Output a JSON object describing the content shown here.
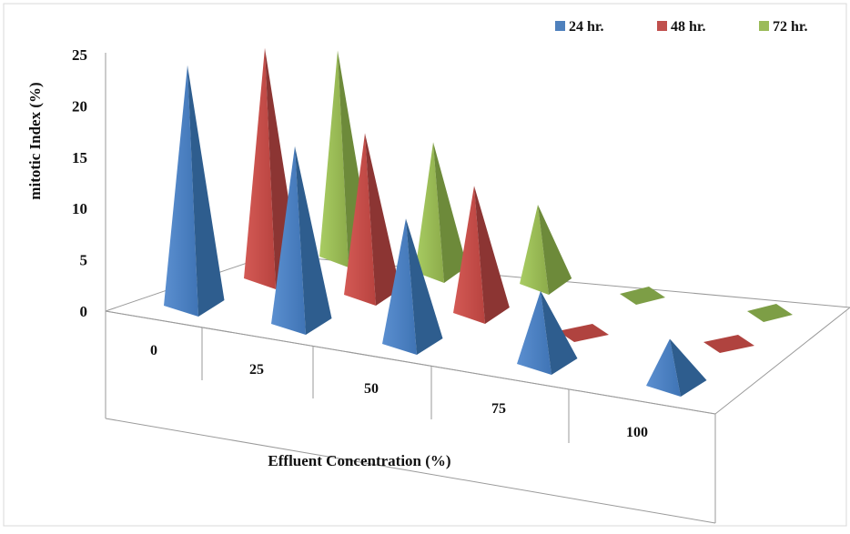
{
  "chart_data": {
    "type": "bar",
    "bar_shape": "3d-pyramid",
    "categories": [
      "0",
      "25",
      "50",
      "75",
      "100"
    ],
    "series": [
      {
        "name": "24 hr.",
        "color": "#4f81bd",
        "values": [
          23.5,
          17.5,
          12.5,
          7.5,
          5.0
        ]
      },
      {
        "name": "48 hr.",
        "color": "#c0504d",
        "values": [
          24.0,
          17.0,
          13.5,
          0.0,
          0.0
        ]
      },
      {
        "name": "72 hr.",
        "color": "#9bbb59",
        "values": [
          25.0,
          16.0,
          10.0,
          0.0,
          0.0
        ]
      }
    ],
    "xlabel": "Effluent Concentration (%)",
    "ylabel": "mitotic Index (%)",
    "ylim": [
      0,
      25
    ],
    "yticks": [
      "0",
      "5",
      "10",
      "15",
      "20",
      "25"
    ],
    "legend_position": "top-right",
    "grid": false
  }
}
